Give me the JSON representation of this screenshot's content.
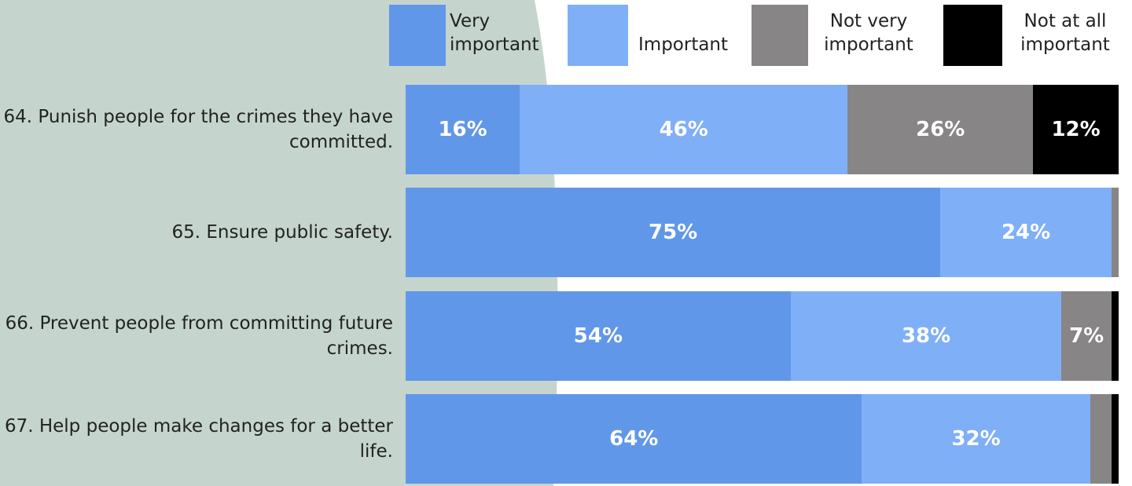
{
  "chart_data": {
    "type": "bar",
    "orientation": "horizontal",
    "stacked": true,
    "categories": [
      "64. Punish people for the crimes they have committed.",
      "65. Ensure public safety.",
      "66. Prevent people from committing future crimes.",
      "67. Help people make changes for a better life."
    ],
    "xlim": [
      0,
      100
    ],
    "series": [
      {
        "name": "Very important",
        "color": "#6197e8",
        "values": [
          16,
          75,
          54,
          64
        ],
        "value_labels": [
          "16%",
          "75%",
          "54%",
          "64%"
        ]
      },
      {
        "name": "Important",
        "color": "#7faff7",
        "values": [
          46,
          24,
          38,
          32
        ],
        "value_labels": [
          "46%",
          "24%",
          "38%",
          "32%"
        ]
      },
      {
        "name": "Not very important",
        "color": "#878585",
        "values": [
          26,
          1,
          7,
          3
        ],
        "value_labels": [
          "26%",
          null,
          "7%",
          null
        ]
      },
      {
        "name": "Not at all important",
        "color": "#000000",
        "values": [
          12,
          0,
          1,
          1
        ],
        "value_labels": [
          "12%",
          null,
          null,
          null
        ]
      }
    ]
  }
}
